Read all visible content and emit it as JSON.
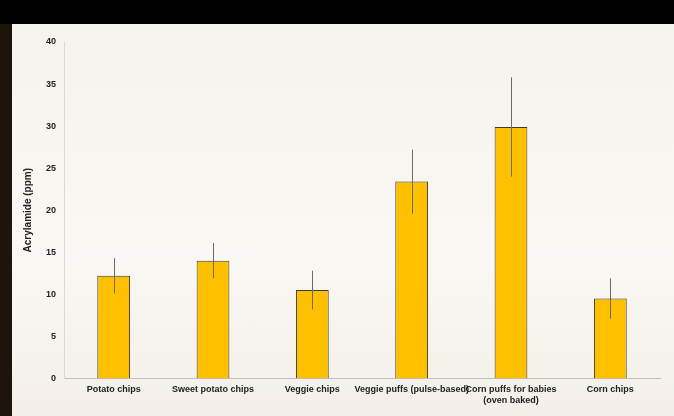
{
  "chart_data": {
    "type": "bar",
    "y_label": "Acrylamide (ppm)",
    "categories": [
      "Potato chips",
      "Sweet potato chips",
      "Veggie chips",
      "Veggie puffs (pulse-based)",
      "Corn puffs for babies (oven baked)",
      "Corn chips"
    ],
    "values": [
      12.2,
      14.0,
      10.5,
      23.4,
      29.9,
      9.5
    ],
    "errors": [
      2.1,
      2.1,
      2.3,
      3.8,
      5.9,
      2.4
    ],
    "color": "#ffc000",
    "ylim": [
      0,
      40
    ],
    "yticks": [
      0,
      5,
      10,
      15,
      20,
      25,
      30,
      35,
      40
    ],
    "grid": false
  }
}
